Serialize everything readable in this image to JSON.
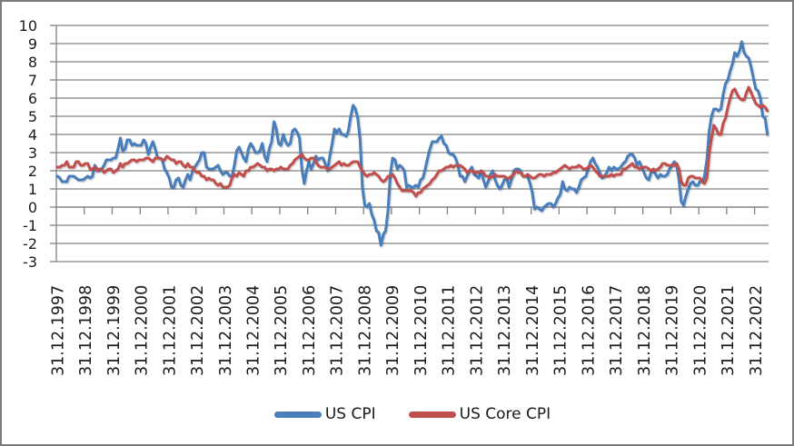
{
  "palette": {
    "us_cpi_blue": "#4A7EBB",
    "us_core_cpi_red": "#C0504D",
    "grid_gray": "#828282",
    "axis_gray": "#808080",
    "text_black": "#1a1a1a",
    "frame_border_gray": "#7b7b7b",
    "background_white": "#ffffff"
  },
  "legend": {
    "item1_label": "US CPI",
    "item2_label": "US Core CPI"
  },
  "chart_data": {
    "type": "line",
    "title": "",
    "xlabel": "",
    "ylabel": "",
    "grid": "horizontal",
    "legend_position": "bottom",
    "ylim": [
      -3,
      10
    ],
    "ytick_step": 1,
    "ytick_labels": [
      "10",
      "9",
      "8",
      "7",
      "6",
      "5",
      "4",
      "3",
      "2",
      "1",
      "0",
      "-1",
      "-2",
      "-3"
    ],
    "months_per_label": 12,
    "x_start": "31.12.1997",
    "x_end_estimate": "31.05.2023",
    "x_tick_labels": [
      "31.12.1997",
      "31.12.1998",
      "31.12.1999",
      "31.12.2000",
      "31.12.2001",
      "31.12.2002",
      "31.12.2003",
      "31.12.2004",
      "31.12.2005",
      "31.12.2006",
      "31.12.2007",
      "31.12.2008",
      "31.12.2009",
      "31.12.2010",
      "31.12.2011",
      "31.12.2012",
      "31.12.2013",
      "31.12.2014",
      "31.12.2015",
      "31.12.2016",
      "31.12.2017",
      "31.12.2018",
      "31.12.2019",
      "31.12.2020",
      "31.12.2021",
      "31.12.2022"
    ],
    "grid_color": "#828282",
    "axis_color": "#808080",
    "text_color": "#1a1a1a",
    "series": [
      {
        "name": "US CPI",
        "color": "#4A7EBB",
        "values": [
          1.7,
          1.6,
          1.4,
          1.4,
          1.4,
          1.7,
          1.7,
          1.7,
          1.6,
          1.5,
          1.5,
          1.5,
          1.6,
          1.7,
          1.6,
          1.7,
          2.3,
          2.1,
          2.0,
          2.1,
          2.3,
          2.6,
          2.6,
          2.6,
          2.7,
          2.7,
          3.2,
          3.8,
          3.1,
          3.2,
          3.7,
          3.7,
          3.4,
          3.5,
          3.4,
          3.4,
          3.4,
          3.7,
          3.5,
          2.9,
          3.3,
          3.6,
          3.2,
          2.7,
          2.7,
          2.6,
          2.1,
          1.9,
          1.6,
          1.1,
          1.1,
          1.5,
          1.6,
          1.2,
          1.1,
          1.5,
          1.8,
          1.5,
          2.0,
          2.2,
          2.4,
          2.6,
          3.0,
          3.0,
          2.2,
          2.1,
          2.1,
          2.1,
          2.2,
          2.3,
          2.0,
          1.8,
          1.9,
          1.9,
          1.7,
          1.7,
          2.3,
          3.1,
          3.3,
          3.0,
          2.7,
          2.5,
          3.2,
          3.5,
          3.3,
          3.0,
          3.0,
          3.1,
          3.5,
          2.8,
          2.5,
          3.2,
          3.6,
          4.7,
          4.3,
          3.5,
          3.4,
          4.0,
          3.6,
          3.4,
          3.5,
          4.2,
          4.3,
          4.1,
          3.8,
          2.1,
          1.3,
          2.0,
          2.5,
          2.1,
          2.4,
          2.8,
          2.6,
          2.7,
          2.7,
          2.4,
          2.0,
          2.8,
          3.5,
          4.3,
          4.1,
          4.3,
          4.0,
          4.0,
          3.9,
          4.2,
          5.0,
          5.6,
          5.4,
          4.9,
          3.7,
          1.1,
          0.1,
          0.0,
          0.2,
          -0.4,
          -0.7,
          -1.3,
          -1.4,
          -2.1,
          -1.5,
          -1.3,
          -0.2,
          1.8,
          2.7,
          2.6,
          2.1,
          2.3,
          2.2,
          2.0,
          1.1,
          1.2,
          1.1,
          1.1,
          1.2,
          1.1,
          1.5,
          1.6,
          2.1,
          2.7,
          3.2,
          3.6,
          3.6,
          3.6,
          3.8,
          3.9,
          3.5,
          3.4,
          3.0,
          2.9,
          2.9,
          2.7,
          2.3,
          1.7,
          1.7,
          1.4,
          1.7,
          2.0,
          2.2,
          1.8,
          1.7,
          1.6,
          2.0,
          1.5,
          1.1,
          1.4,
          1.8,
          2.0,
          1.5,
          1.2,
          1.0,
          1.2,
          1.5,
          1.6,
          1.1,
          1.5,
          2.0,
          2.1,
          2.1,
          2.0,
          1.7,
          1.7,
          1.7,
          1.3,
          0.8,
          -0.1,
          0.0,
          -0.1,
          -0.2,
          0.0,
          0.1,
          0.2,
          0.2,
          0.0,
          0.2,
          0.5,
          0.7,
          1.4,
          1.0,
          0.9,
          1.1,
          1.0,
          1.0,
          0.8,
          1.1,
          1.5,
          1.6,
          1.7,
          2.1,
          2.5,
          2.7,
          2.4,
          2.2,
          1.9,
          1.6,
          1.7,
          1.9,
          2.2,
          2.0,
          2.2,
          2.1,
          2.1,
          2.2,
          2.4,
          2.5,
          2.8,
          2.9,
          2.9,
          2.7,
          2.3,
          2.5,
          2.2,
          1.9,
          1.6,
          1.5,
          1.9,
          2.0,
          1.8,
          1.6,
          1.8,
          1.7,
          1.7,
          1.8,
          2.1,
          2.3,
          2.5,
          2.3,
          1.5,
          0.3,
          0.1,
          0.6,
          1.0,
          1.3,
          1.4,
          1.2,
          1.2,
          1.4,
          1.4,
          1.7,
          2.6,
          4.2,
          5.0,
          5.4,
          5.4,
          5.3,
          5.4,
          6.2,
          6.8,
          7.0,
          7.5,
          7.9,
          8.5,
          8.3,
          8.6,
          9.1,
          8.5,
          8.3,
          8.2,
          7.7,
          7.1,
          6.5,
          6.4,
          6.0,
          5.0,
          4.9,
          4.0
        ]
      },
      {
        "name": "US Core CPI",
        "color": "#C0504D",
        "values": [
          2.2,
          2.2,
          2.3,
          2.3,
          2.5,
          2.2,
          2.2,
          2.2,
          2.5,
          2.5,
          2.3,
          2.3,
          2.4,
          2.4,
          2.1,
          2.1,
          2.2,
          2.0,
          2.1,
          2.1,
          1.9,
          2.0,
          2.1,
          2.1,
          1.9,
          2.0,
          2.1,
          2.4,
          2.2,
          2.4,
          2.4,
          2.5,
          2.6,
          2.6,
          2.5,
          2.6,
          2.6,
          2.6,
          2.7,
          2.7,
          2.6,
          2.5,
          2.7,
          2.7,
          2.7,
          2.6,
          2.6,
          2.8,
          2.7,
          2.6,
          2.6,
          2.4,
          2.5,
          2.5,
          2.3,
          2.2,
          2.4,
          2.2,
          2.2,
          2.0,
          1.9,
          1.9,
          1.7,
          1.7,
          1.5,
          1.6,
          1.5,
          1.5,
          1.3,
          1.2,
          1.3,
          1.1,
          1.1,
          1.1,
          1.2,
          1.6,
          1.8,
          1.7,
          1.9,
          1.8,
          1.7,
          2.0,
          2.0,
          2.2,
          2.2,
          2.3,
          2.4,
          2.3,
          2.2,
          2.2,
          2.0,
          2.1,
          2.1,
          2.0,
          2.1,
          2.1,
          2.2,
          2.1,
          2.1,
          2.1,
          2.3,
          2.4,
          2.6,
          2.7,
          2.8,
          2.9,
          2.7,
          2.6,
          2.6,
          2.7,
          2.7,
          2.5,
          2.3,
          2.2,
          2.2,
          2.2,
          2.1,
          2.1,
          2.2,
          2.3,
          2.4,
          2.5,
          2.3,
          2.4,
          2.3,
          2.3,
          2.4,
          2.5,
          2.5,
          2.5,
          2.2,
          2.0,
          1.8,
          1.7,
          1.8,
          1.8,
          1.9,
          1.8,
          1.7,
          1.5,
          1.4,
          1.5,
          1.7,
          1.7,
          1.8,
          1.6,
          1.3,
          1.1,
          0.9,
          0.9,
          0.9,
          0.9,
          0.9,
          0.8,
          0.6,
          0.8,
          0.8,
          1.0,
          1.1,
          1.2,
          1.3,
          1.5,
          1.6,
          1.8,
          2.0,
          2.0,
          2.1,
          2.2,
          2.2,
          2.3,
          2.2,
          2.3,
          2.3,
          2.3,
          2.2,
          2.1,
          1.9,
          2.0,
          2.0,
          1.9,
          1.9,
          1.9,
          2.0,
          1.9,
          1.7,
          1.7,
          1.6,
          1.7,
          1.8,
          1.7,
          1.7,
          1.7,
          1.7,
          1.6,
          1.6,
          1.7,
          1.8,
          2.0,
          1.9,
          1.9,
          1.7,
          1.7,
          1.8,
          1.7,
          1.6,
          1.6,
          1.7,
          1.8,
          1.8,
          1.7,
          1.8,
          1.8,
          1.8,
          1.9,
          1.9,
          2.0,
          2.1,
          2.2,
          2.3,
          2.2,
          2.1,
          2.2,
          2.2,
          2.2,
          2.3,
          2.2,
          2.1,
          2.1,
          2.2,
          2.3,
          2.2,
          2.0,
          1.9,
          1.7,
          1.7,
          1.7,
          1.7,
          1.7,
          1.8,
          1.7,
          1.8,
          1.8,
          1.8,
          2.1,
          2.1,
          2.2,
          2.3,
          2.4,
          2.2,
          2.2,
          2.1,
          2.2,
          2.2,
          2.2,
          2.1,
          2.0,
          2.1,
          2.0,
          2.1,
          2.2,
          2.4,
          2.4,
          2.3,
          2.3,
          2.3,
          2.3,
          2.4,
          2.1,
          1.4,
          1.2,
          1.2,
          1.6,
          1.7,
          1.7,
          1.6,
          1.6,
          1.6,
          1.4,
          1.3,
          1.6,
          3.0,
          3.8,
          4.5,
          4.3,
          4.0,
          4.0,
          4.6,
          4.9,
          5.5,
          6.0,
          6.4,
          6.5,
          6.2,
          6.0,
          5.9,
          5.9,
          6.3,
          6.6,
          6.3,
          6.0,
          5.7,
          5.6,
          5.5,
          5.6,
          5.5,
          5.3
        ]
      }
    ]
  }
}
